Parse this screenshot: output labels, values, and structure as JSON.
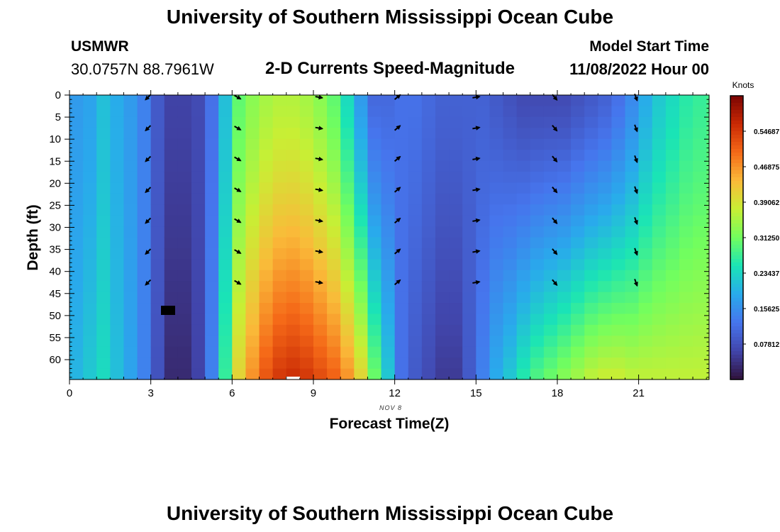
{
  "header": {
    "title": "University of Southern Mississippi Ocean Cube",
    "station_code": "USMWR",
    "station_coords": "30.0757N  88.7961W",
    "chart_heading": "2-D Currents Speed-Magnitude",
    "start_label": "Model Start Time",
    "start_value": "11/08/2022 Hour 00"
  },
  "footer": {
    "title": "University of Southern Mississippi Ocean Cube"
  },
  "chart_data": {
    "type": "heatmap",
    "title": "2-D Currents Speed-Magnitude",
    "xlabel": "Forecast Time(Z)",
    "ylabel": "Depth (ft)",
    "date_label": "NOV 8",
    "xlim": [
      0,
      23.6
    ],
    "ylim": [
      0,
      64.5
    ],
    "x_ticks": [
      0,
      3,
      6,
      9,
      12,
      15,
      18,
      21
    ],
    "y_ticks": [
      0,
      5,
      10,
      15,
      20,
      25,
      30,
      35,
      40,
      45,
      50,
      55,
      60
    ],
    "colorbar": {
      "label": "Knots",
      "min": 0.0,
      "max": 0.625,
      "ticks": [
        "0.54687",
        "0.46875",
        "0.39062",
        "0.31250",
        "0.23437",
        "0.15625",
        "0.07812"
      ],
      "tick_values": [
        0.54687,
        0.46875,
        0.39062,
        0.3125,
        0.23437,
        0.15625,
        0.07812
      ]
    },
    "hours": [
      0,
      0.5,
      1,
      1.5,
      2,
      2.5,
      3,
      3.5,
      4,
      4.5,
      5,
      5.5,
      6,
      6.5,
      7,
      7.5,
      8,
      8.5,
      9,
      9.5,
      10,
      10.5,
      11,
      11.5,
      12,
      12.5,
      13,
      13.5,
      14,
      14.5,
      15,
      15.5,
      16,
      16.5,
      17,
      17.5,
      18,
      18.5,
      19,
      19.5,
      20,
      20.5,
      21,
      21.5,
      22,
      22.5,
      23,
      23.5
    ],
    "surface_speed": [
      0.17,
      0.18,
      0.21,
      0.19,
      0.17,
      0.14,
      0.09,
      0.06,
      0.06,
      0.07,
      0.12,
      0.21,
      0.3,
      0.33,
      0.35,
      0.36,
      0.36,
      0.35,
      0.33,
      0.3,
      0.24,
      0.17,
      0.11,
      0.11,
      0.12,
      0.12,
      0.11,
      0.1,
      0.1,
      0.1,
      0.1,
      0.09,
      0.08,
      0.07,
      0.07,
      0.07,
      0.07,
      0.08,
      0.09,
      0.1,
      0.12,
      0.15,
      0.19,
      0.22,
      0.24,
      0.26,
      0.27,
      0.28
    ],
    "bottom_speed": [
      0.2,
      0.22,
      0.24,
      0.21,
      0.18,
      0.14,
      0.08,
      0.03,
      0.03,
      0.06,
      0.14,
      0.27,
      0.41,
      0.47,
      0.52,
      0.55,
      0.56,
      0.55,
      0.53,
      0.51,
      0.47,
      0.41,
      0.31,
      0.22,
      0.12,
      0.09,
      0.07,
      0.05,
      0.05,
      0.09,
      0.14,
      0.19,
      0.22,
      0.26,
      0.29,
      0.31,
      0.33,
      0.35,
      0.37,
      0.38,
      0.38,
      0.37,
      0.37,
      0.37,
      0.37,
      0.37,
      0.37,
      0.37
    ],
    "vectors": {
      "hours": [
        2.9,
        6.2,
        9.2,
        12.1,
        15.0,
        17.9,
        20.9
      ],
      "depths": [
        0,
        7,
        14,
        21,
        28,
        35,
        42
      ],
      "directions_deg": [
        225,
        120,
        100,
        50,
        80,
        140,
        160
      ]
    }
  }
}
